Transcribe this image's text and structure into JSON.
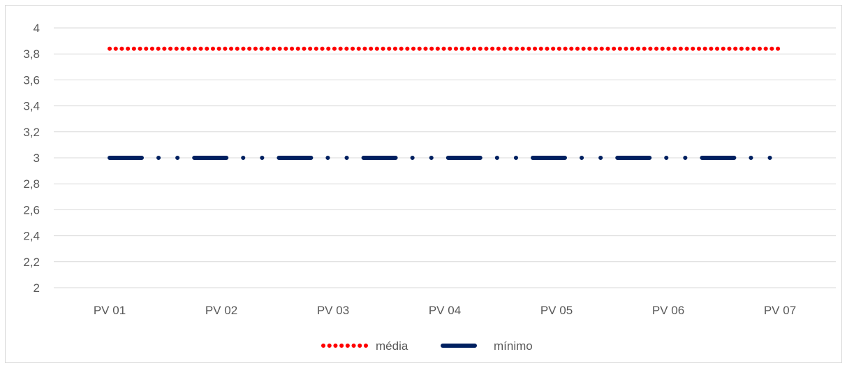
{
  "chart_data": {
    "type": "line",
    "categories": [
      "PV 01",
      "PV 02",
      "PV 03",
      "PV 04",
      "PV 05",
      "PV 06",
      "PV 07"
    ],
    "ylim": [
      2,
      4
    ],
    "yticks": [
      "2",
      "2,2",
      "2,4",
      "2,6",
      "2,8",
      "3",
      "3,2",
      "3,4",
      "3,6",
      "3,8",
      "4"
    ],
    "grid": true,
    "legend_position": "bottom",
    "series": [
      {
        "name": "média",
        "values": [
          3.84,
          3.84,
          3.84,
          3.84,
          3.84,
          3.84,
          3.84
        ],
        "color": "#ff0000",
        "style": "round-dot"
      },
      {
        "name": "mínimo",
        "values": [
          3,
          3,
          3,
          3,
          3,
          3,
          3
        ],
        "color": "#002060",
        "style": "long-dash-dot-dot"
      }
    ]
  }
}
